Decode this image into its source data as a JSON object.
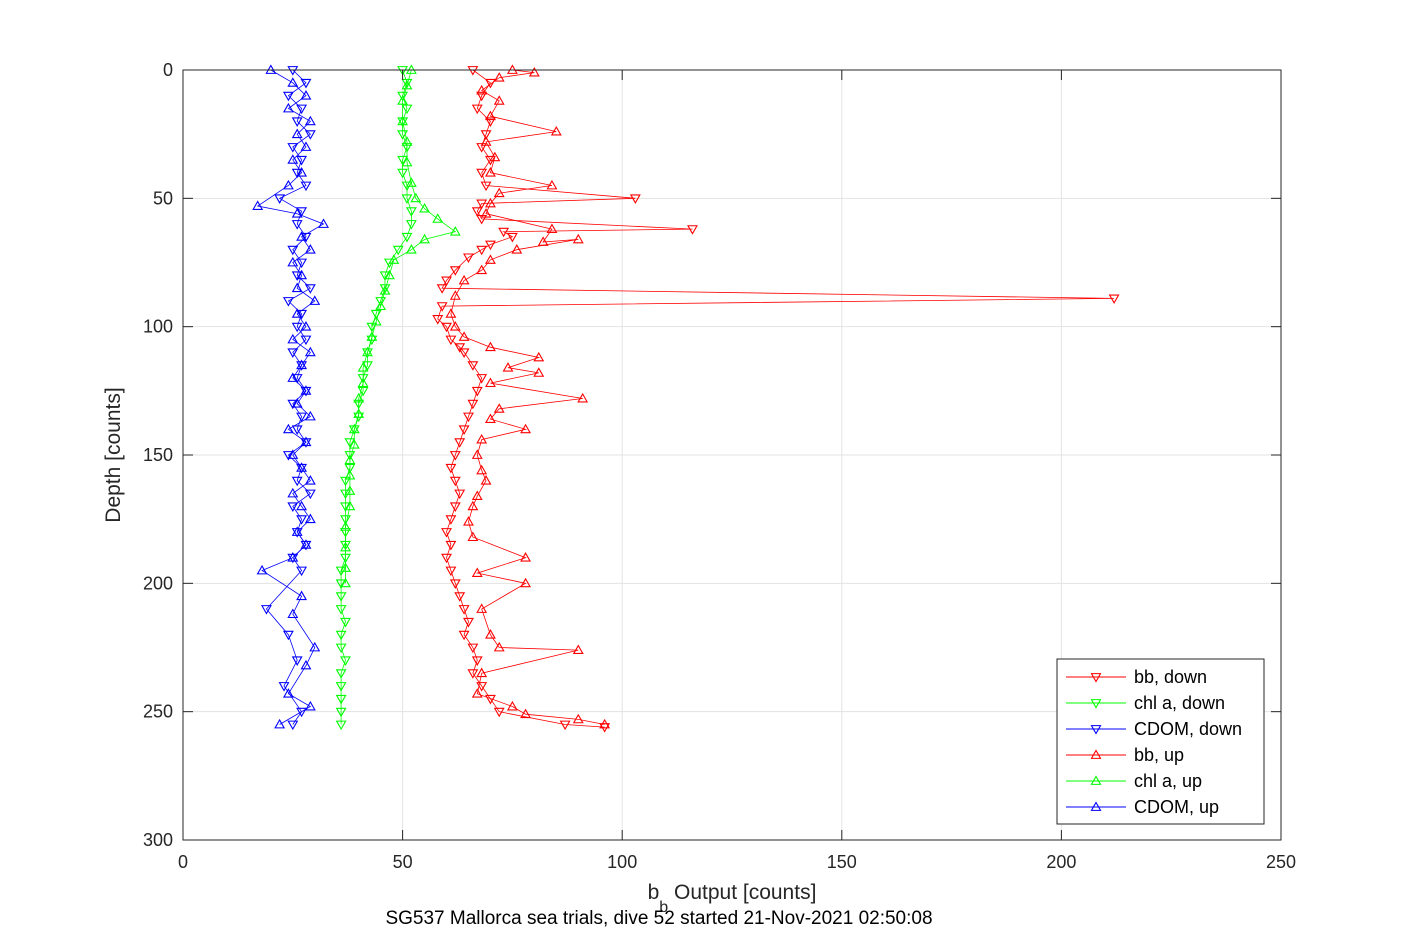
{
  "chart_data": {
    "type": "scatter",
    "title": "SG537 Mallorca sea trials, dive 52 started 21-Nov-2021 02:50:08",
    "xlabel": {
      "main": "b",
      "sub": "b",
      "rest": " Output [counts]"
    },
    "ylabel": "Depth [counts]",
    "xlim": [
      0,
      250
    ],
    "ylim": [
      0,
      300
    ],
    "y_reversed": true,
    "grid": true,
    "legend_position": "bottom-right",
    "xticks": [
      "0",
      "50",
      "100",
      "150",
      "200",
      "250"
    ],
    "yticks": [
      "0",
      "50",
      "100",
      "150",
      "200",
      "250",
      "300"
    ],
    "series": [
      {
        "name": "bb, down",
        "color": "#ff0000",
        "marker": "triangle-down",
        "connected": true,
        "points": [
          [
            66,
            0
          ],
          [
            70,
            5
          ],
          [
            68,
            10
          ],
          [
            67,
            15
          ],
          [
            70,
            20
          ],
          [
            69,
            25
          ],
          [
            68,
            30
          ],
          [
            70,
            35
          ],
          [
            68,
            40
          ],
          [
            69,
            45
          ],
          [
            103,
            50
          ],
          [
            68,
            52
          ],
          [
            67,
            55
          ],
          [
            68,
            58
          ],
          [
            116,
            62
          ],
          [
            73,
            63
          ],
          [
            75,
            65
          ],
          [
            70,
            68
          ],
          [
            68,
            70
          ],
          [
            65,
            73
          ],
          [
            62,
            78
          ],
          [
            60,
            82
          ],
          [
            59,
            85
          ],
          [
            212,
            89
          ],
          [
            59,
            92
          ],
          [
            58,
            97
          ],
          [
            60,
            100
          ],
          [
            61,
            105
          ],
          [
            63,
            108
          ],
          [
            64,
            110
          ],
          [
            66,
            115
          ],
          [
            68,
            120
          ],
          [
            67,
            125
          ],
          [
            66,
            130
          ],
          [
            65,
            135
          ],
          [
            64,
            140
          ],
          [
            63,
            145
          ],
          [
            62,
            150
          ],
          [
            61,
            155
          ],
          [
            62,
            160
          ],
          [
            63,
            165
          ],
          [
            62,
            170
          ],
          [
            61,
            175
          ],
          [
            60,
            180
          ],
          [
            61,
            185
          ],
          [
            60,
            190
          ],
          [
            61,
            195
          ],
          [
            62,
            200
          ],
          [
            63,
            205
          ],
          [
            64,
            210
          ],
          [
            65,
            215
          ],
          [
            64,
            220
          ],
          [
            66,
            225
          ],
          [
            67,
            230
          ],
          [
            66,
            235
          ],
          [
            68,
            240
          ],
          [
            70,
            245
          ],
          [
            72,
            250
          ],
          [
            87,
            255
          ],
          [
            96,
            256
          ]
        ]
      },
      {
        "name": "chl a, down",
        "color": "#00ff00",
        "marker": "triangle-down",
        "connected": true,
        "points": [
          [
            50,
            0
          ],
          [
            51,
            5
          ],
          [
            50,
            10
          ],
          [
            51,
            15
          ],
          [
            50,
            20
          ],
          [
            50,
            25
          ],
          [
            51,
            30
          ],
          [
            50,
            35
          ],
          [
            50,
            40
          ],
          [
            51,
            45
          ],
          [
            51,
            50
          ],
          [
            52,
            55
          ],
          [
            52,
            60
          ],
          [
            51,
            65
          ],
          [
            49,
            70
          ],
          [
            47,
            75
          ],
          [
            46,
            80
          ],
          [
            46,
            85
          ],
          [
            45,
            90
          ],
          [
            44,
            95
          ],
          [
            43,
            100
          ],
          [
            43,
            105
          ],
          [
            42,
            110
          ],
          [
            42,
            115
          ],
          [
            41,
            120
          ],
          [
            41,
            125
          ],
          [
            40,
            130
          ],
          [
            40,
            135
          ],
          [
            39,
            140
          ],
          [
            38,
            145
          ],
          [
            38,
            150
          ],
          [
            38,
            155
          ],
          [
            37,
            160
          ],
          [
            37,
            165
          ],
          [
            37,
            170
          ],
          [
            37,
            175
          ],
          [
            37,
            180
          ],
          [
            37,
            185
          ],
          [
            37,
            190
          ],
          [
            36,
            195
          ],
          [
            36,
            200
          ],
          [
            36,
            205
          ],
          [
            36,
            210
          ],
          [
            37,
            215
          ],
          [
            36,
            220
          ],
          [
            36,
            225
          ],
          [
            37,
            230
          ],
          [
            36,
            235
          ],
          [
            36,
            240
          ],
          [
            36,
            245
          ],
          [
            36,
            250
          ],
          [
            36,
            255
          ]
        ]
      },
      {
        "name": "CDOM, down",
        "color": "#0000ff",
        "marker": "triangle-down",
        "connected": true,
        "points": [
          [
            25,
            0
          ],
          [
            28,
            5
          ],
          [
            24,
            10
          ],
          [
            27,
            15
          ],
          [
            26,
            20
          ],
          [
            29,
            25
          ],
          [
            25,
            30
          ],
          [
            27,
            35
          ],
          [
            26,
            40
          ],
          [
            28,
            45
          ],
          [
            22,
            50
          ],
          [
            27,
            55
          ],
          [
            26,
            60
          ],
          [
            28,
            65
          ],
          [
            25,
            70
          ],
          [
            27,
            75
          ],
          [
            26,
            80
          ],
          [
            29,
            85
          ],
          [
            24,
            90
          ],
          [
            27,
            95
          ],
          [
            26,
            100
          ],
          [
            28,
            105
          ],
          [
            25,
            110
          ],
          [
            27,
            115
          ],
          [
            26,
            120
          ],
          [
            28,
            125
          ],
          [
            25,
            130
          ],
          [
            27,
            135
          ],
          [
            26,
            140
          ],
          [
            28,
            145
          ],
          [
            24,
            150
          ],
          [
            27,
            155
          ],
          [
            26,
            160
          ],
          [
            29,
            165
          ],
          [
            25,
            170
          ],
          [
            27,
            175
          ],
          [
            26,
            180
          ],
          [
            28,
            185
          ],
          [
            25,
            190
          ],
          [
            27,
            195
          ],
          [
            19,
            210
          ],
          [
            24,
            220
          ],
          [
            26,
            230
          ],
          [
            23,
            240
          ],
          [
            27,
            250
          ],
          [
            25,
            255
          ]
        ]
      },
      {
        "name": "bb, up",
        "color": "#ff0000",
        "marker": "triangle-up",
        "connected": true,
        "points": [
          [
            75,
            0
          ],
          [
            80,
            1
          ],
          [
            72,
            3
          ],
          [
            68,
            8
          ],
          [
            72,
            12
          ],
          [
            70,
            18
          ],
          [
            85,
            24
          ],
          [
            69,
            28
          ],
          [
            71,
            34
          ],
          [
            70,
            40
          ],
          [
            84,
            45
          ],
          [
            72,
            48
          ],
          [
            70,
            52
          ],
          [
            69,
            56
          ],
          [
            84,
            62
          ],
          [
            82,
            67
          ],
          [
            90,
            66
          ],
          [
            76,
            70
          ],
          [
            70,
            74
          ],
          [
            68,
            78
          ],
          [
            64,
            82
          ],
          [
            62,
            88
          ],
          [
            61,
            95
          ],
          [
            62,
            100
          ],
          [
            64,
            104
          ],
          [
            70,
            108
          ],
          [
            81,
            112
          ],
          [
            74,
            116
          ],
          [
            81,
            118
          ],
          [
            70,
            122
          ],
          [
            91,
            128
          ],
          [
            72,
            132
          ],
          [
            70,
            136
          ],
          [
            78,
            140
          ],
          [
            68,
            144
          ],
          [
            67,
            150
          ],
          [
            68,
            156
          ],
          [
            69,
            160
          ],
          [
            67,
            166
          ],
          [
            66,
            170
          ],
          [
            65,
            176
          ],
          [
            66,
            182
          ],
          [
            78,
            190
          ],
          [
            67,
            196
          ],
          [
            78,
            200
          ],
          [
            68,
            210
          ],
          [
            70,
            220
          ],
          [
            72,
            225
          ],
          [
            90,
            226
          ],
          [
            68,
            235
          ],
          [
            67,
            243
          ],
          [
            75,
            248
          ],
          [
            78,
            251
          ],
          [
            90,
            253
          ],
          [
            96,
            255
          ]
        ]
      },
      {
        "name": "chl a, up",
        "color": "#00ff00",
        "marker": "triangle-up",
        "connected": true,
        "points": [
          [
            52,
            0
          ],
          [
            51,
            6
          ],
          [
            50,
            12
          ],
          [
            50,
            20
          ],
          [
            51,
            28
          ],
          [
            51,
            36
          ],
          [
            52,
            44
          ],
          [
            53,
            50
          ],
          [
            55,
            54
          ],
          [
            58,
            58
          ],
          [
            62,
            63
          ],
          [
            55,
            66
          ],
          [
            52,
            70
          ],
          [
            48,
            74
          ],
          [
            47,
            80
          ],
          [
            46,
            86
          ],
          [
            45,
            92
          ],
          [
            44,
            98
          ],
          [
            43,
            104
          ],
          [
            42,
            110
          ],
          [
            41,
            116
          ],
          [
            41,
            122
          ],
          [
            40,
            128
          ],
          [
            40,
            134
          ],
          [
            39,
            140
          ],
          [
            39,
            146
          ],
          [
            38,
            152
          ],
          [
            38,
            158
          ],
          [
            38,
            164
          ],
          [
            38,
            170
          ],
          [
            37,
            178
          ],
          [
            37,
            186
          ],
          [
            37,
            194
          ],
          [
            37,
            200
          ]
        ]
      },
      {
        "name": "CDOM, up",
        "color": "#0000ff",
        "marker": "triangle-up",
        "connected": true,
        "points": [
          [
            20,
            0
          ],
          [
            25,
            5
          ],
          [
            28,
            10
          ],
          [
            24,
            15
          ],
          [
            29,
            20
          ],
          [
            26,
            25
          ],
          [
            28,
            30
          ],
          [
            25,
            35
          ],
          [
            27,
            40
          ],
          [
            24,
            45
          ],
          [
            17,
            53
          ],
          [
            26,
            56
          ],
          [
            32,
            60
          ],
          [
            27,
            65
          ],
          [
            29,
            70
          ],
          [
            25,
            75
          ],
          [
            27,
            80
          ],
          [
            26,
            85
          ],
          [
            30,
            90
          ],
          [
            26,
            95
          ],
          [
            28,
            100
          ],
          [
            25,
            105
          ],
          [
            29,
            110
          ],
          [
            27,
            115
          ],
          [
            25,
            120
          ],
          [
            28,
            125
          ],
          [
            26,
            130
          ],
          [
            29,
            135
          ],
          [
            24,
            140
          ],
          [
            28,
            145
          ],
          [
            25,
            150
          ],
          [
            27,
            155
          ],
          [
            29,
            160
          ],
          [
            25,
            165
          ],
          [
            27,
            170
          ],
          [
            29,
            175
          ],
          [
            26,
            180
          ],
          [
            28,
            185
          ],
          [
            25,
            190
          ],
          [
            18,
            195
          ],
          [
            27,
            205
          ],
          [
            25,
            212
          ],
          [
            30,
            225
          ],
          [
            28,
            232
          ],
          [
            24,
            243
          ],
          [
            29,
            248
          ],
          [
            22,
            255
          ]
        ]
      }
    ]
  }
}
